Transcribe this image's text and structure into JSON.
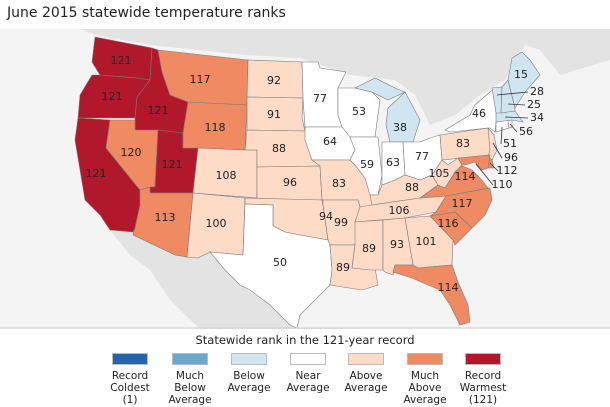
{
  "title": "June 2015 statewide temperature ranks",
  "colors": {
    "record_coldest": "#2166ac",
    "much_below": "#67a9cf",
    "below": "#d1e5f0",
    "near": "#ffffff",
    "above": "#fddbc7",
    "much_above": "#ef8a62",
    "record_warmest": "#b2182b",
    "land_outside": "#e3e3e3",
    "water": "#f4f4f4"
  },
  "legend": {
    "title": "Statewide rank in the 121-year record",
    "items": [
      {
        "key": "record_coldest",
        "label": "Record\nColdest\n(1)"
      },
      {
        "key": "much_below",
        "label": "Much\nBelow\nAverage"
      },
      {
        "key": "below",
        "label": "Below\nAverage"
      },
      {
        "key": "near",
        "label": "Near\nAverage"
      },
      {
        "key": "above",
        "label": "Above\nAverage"
      },
      {
        "key": "much_above",
        "label": "Much\nAbove\nAverage"
      },
      {
        "key": "record_warmest",
        "label": "Record\nWarmest\n(121)"
      }
    ]
  },
  "states": {
    "WA": {
      "rank": "121",
      "category": "record_warmest"
    },
    "OR": {
      "rank": "121",
      "category": "record_warmest"
    },
    "CA": {
      "rank": "121",
      "category": "record_warmest"
    },
    "ID": {
      "rank": "121",
      "category": "record_warmest"
    },
    "NV": {
      "rank": "120",
      "category": "much_above"
    },
    "UT": {
      "rank": "121",
      "category": "record_warmest"
    },
    "AZ": {
      "rank": "113",
      "category": "much_above"
    },
    "MT": {
      "rank": "117",
      "category": "much_above"
    },
    "WY": {
      "rank": "118",
      "category": "much_above"
    },
    "CO": {
      "rank": "108",
      "category": "above"
    },
    "NM": {
      "rank": "100",
      "category": "above"
    },
    "ND": {
      "rank": "92",
      "category": "above"
    },
    "SD": {
      "rank": "91",
      "category": "above"
    },
    "NE": {
      "rank": "88",
      "category": "above"
    },
    "KS": {
      "rank": "96",
      "category": "above"
    },
    "OK": {
      "rank": "94",
      "category": "above"
    },
    "TX": {
      "rank": "50",
      "category": "near"
    },
    "MN": {
      "rank": "77",
      "category": "near"
    },
    "IA": {
      "rank": "64",
      "category": "near"
    },
    "MO": {
      "rank": "83",
      "category": "above"
    },
    "AR": {
      "rank": "99",
      "category": "above"
    },
    "LA": {
      "rank": "89",
      "category": "above"
    },
    "WI": {
      "rank": "53",
      "category": "near"
    },
    "MI": {
      "rank": "38",
      "category": "below"
    },
    "IL": {
      "rank": "59",
      "category": "near"
    },
    "IN": {
      "rank": "63",
      "category": "near"
    },
    "OH": {
      "rank": "77",
      "category": "near"
    },
    "KY": {
      "rank": "88",
      "category": "above"
    },
    "TN": {
      "rank": "106",
      "category": "above"
    },
    "MS": {
      "rank": "89",
      "category": "above"
    },
    "AL": {
      "rank": "93",
      "category": "above"
    },
    "GA": {
      "rank": "101",
      "category": "above"
    },
    "FL": {
      "rank": "114",
      "category": "much_above"
    },
    "SC": {
      "rank": "116",
      "category": "much_above"
    },
    "NC": {
      "rank": "117",
      "category": "much_above"
    },
    "VA": {
      "rank": "114",
      "category": "much_above"
    },
    "WV": {
      "rank": "105",
      "category": "above"
    },
    "PA": {
      "rank": "83",
      "category": "above"
    },
    "NY": {
      "rank": "46",
      "category": "near"
    },
    "NJ": {
      "rank": "96",
      "category": "above"
    },
    "DE": {
      "rank": "112",
      "category": "much_above"
    },
    "MD": {
      "rank": "110",
      "category": "much_above"
    },
    "CT": {
      "rank": "51",
      "category": "near"
    },
    "RI": {
      "rank": "56",
      "category": "near"
    },
    "MA": {
      "rank": "34",
      "category": "below"
    },
    "NH": {
      "rank": "25",
      "category": "below"
    },
    "VT": {
      "rank": "28",
      "category": "below"
    },
    "ME": {
      "rank": "15",
      "category": "below"
    }
  }
}
